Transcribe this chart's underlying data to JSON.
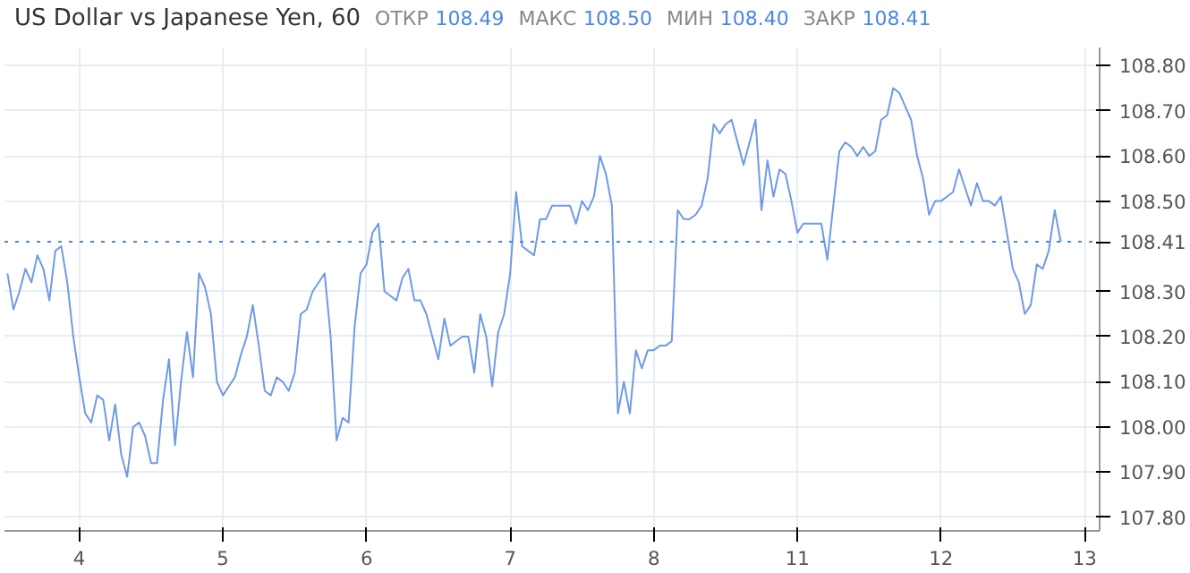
{
  "chart_data": {
    "type": "line",
    "title": "US Dollar vs Japanese Yen, 60",
    "annotations": [
      "ОТКР 108.49",
      "МАКС 108.50",
      "МИН 108.40",
      "ЗАКР 108.41"
    ],
    "categories": [
      null,
      null,
      null,
      null,
      null,
      null,
      null,
      null,
      null,
      null,
      null,
      null,
      "4",
      null,
      null,
      null,
      null,
      null,
      null,
      null,
      null,
      null,
      null,
      null,
      null,
      null,
      null,
      null,
      null,
      null,
      null,
      null,
      null,
      null,
      null,
      null,
      "5",
      null,
      null,
      null,
      null,
      null,
      null,
      null,
      null,
      null,
      null,
      null,
      null,
      null,
      null,
      null,
      null,
      null,
      null,
      null,
      null,
      null,
      null,
      null,
      "6",
      null,
      null,
      null,
      null,
      null,
      null,
      null,
      null,
      null,
      null,
      null,
      null,
      null,
      null,
      null,
      null,
      null,
      null,
      null,
      null,
      null,
      null,
      null,
      "7",
      null,
      null,
      null,
      null,
      null,
      null,
      null,
      null,
      null,
      null,
      null,
      null,
      null,
      null,
      null,
      null,
      null,
      null,
      null,
      null,
      null,
      null,
      null,
      "8",
      null,
      null,
      null,
      null,
      null,
      null,
      null,
      null,
      null,
      null,
      null,
      null,
      null,
      null,
      null,
      null,
      null,
      null,
      null,
      null,
      null,
      null,
      null,
      "11",
      null,
      null,
      null,
      null,
      null,
      null,
      null,
      null,
      null,
      null,
      null,
      null,
      null,
      null,
      null,
      null,
      null,
      null,
      null,
      null,
      null,
      null,
      null,
      "12",
      null,
      null,
      null,
      null,
      null,
      null,
      null,
      null,
      null,
      null,
      null,
      null,
      null,
      null,
      null,
      null,
      null,
      null,
      null,
      null,
      null,
      null,
      null,
      "13"
    ],
    "series": [
      {
        "color": "#6f9ae6",
        "values": [
          108.34,
          108.26,
          108.3,
          108.35,
          108.32,
          108.38,
          108.35,
          108.28,
          108.39,
          108.4,
          108.32,
          108.2,
          108.11,
          108.03,
          108.01,
          108.07,
          108.06,
          107.97,
          108.05,
          107.94,
          107.89,
          108.0,
          108.01,
          107.98,
          107.92,
          107.92,
          108.06,
          108.15,
          107.96,
          108.1,
          108.21,
          108.11,
          108.34,
          108.31,
          108.25,
          108.1,
          108.07,
          108.09,
          108.11,
          108.16,
          108.2,
          108.27,
          108.18,
          108.08,
          108.07,
          108.11,
          108.1,
          108.08,
          108.12,
          108.25,
          108.26,
          108.3,
          108.32,
          108.34,
          108.2,
          107.97,
          108.02,
          108.01,
          108.22,
          108.34,
          108.36,
          108.43,
          108.45,
          108.3,
          108.29,
          108.28,
          108.33,
          108.35,
          108.28,
          108.28,
          108.25,
          108.2,
          108.15,
          108.24,
          108.18,
          108.19,
          108.2,
          108.2,
          108.12,
          108.25,
          108.2,
          108.09,
          108.21,
          108.25,
          108.34,
          108.52,
          108.4,
          108.39,
          108.38,
          108.46,
          108.46,
          108.49,
          108.49,
          108.49,
          108.49,
          108.45,
          108.5,
          108.48,
          108.51,
          108.6,
          108.56,
          108.49,
          108.03,
          108.1,
          108.03,
          108.17,
          108.13,
          108.17,
          108.17,
          108.18,
          108.18,
          108.19,
          108.48,
          108.46,
          108.46,
          108.47,
          108.49,
          108.55,
          108.67,
          108.65,
          108.67,
          108.68,
          108.63,
          108.58,
          108.63,
          108.68,
          108.48,
          108.59,
          108.51,
          108.57,
          108.56,
          108.5,
          108.43,
          108.45,
          108.45,
          108.45,
          108.45,
          108.37,
          108.49,
          108.61,
          108.63,
          108.62,
          108.6,
          108.62,
          108.6,
          108.61,
          108.68,
          108.69,
          108.75,
          108.74,
          108.71,
          108.68,
          108.6,
          108.55,
          108.47,
          108.5,
          108.5,
          108.51,
          108.52,
          108.57,
          108.53,
          108.49,
          108.54,
          108.5,
          108.5,
          108.49,
          108.51,
          108.43,
          108.35,
          108.32,
          108.25,
          108.27,
          108.36,
          108.35,
          108.39,
          108.48,
          108.41,
          null,
          null,
          null,
          null
        ]
      }
    ],
    "ylim": [
      107.77,
      108.84
    ],
    "yticks": [
      {
        "value": 107.8,
        "label": "107.80"
      },
      {
        "value": 107.9,
        "label": "107.90"
      },
      {
        "value": 108.0,
        "label": "108.00"
      },
      {
        "value": 108.1,
        "label": "108.10"
      },
      {
        "value": 108.2,
        "label": "108.20"
      },
      {
        "value": 108.3,
        "label": "108.30"
      },
      {
        "value": 108.5,
        "label": "108.50"
      },
      {
        "value": 108.6,
        "label": "108.60"
      },
      {
        "value": 108.7,
        "label": "108.70"
      },
      {
        "value": 108.8,
        "label": "108.80"
      }
    ],
    "ref_lines": [
      {
        "axis": "y",
        "value": 108.41,
        "label": "108.41",
        "color": "#4a86e8",
        "line_style": "dotted"
      }
    ],
    "grid": true,
    "marker": "none",
    "line_style": "solid"
  }
}
